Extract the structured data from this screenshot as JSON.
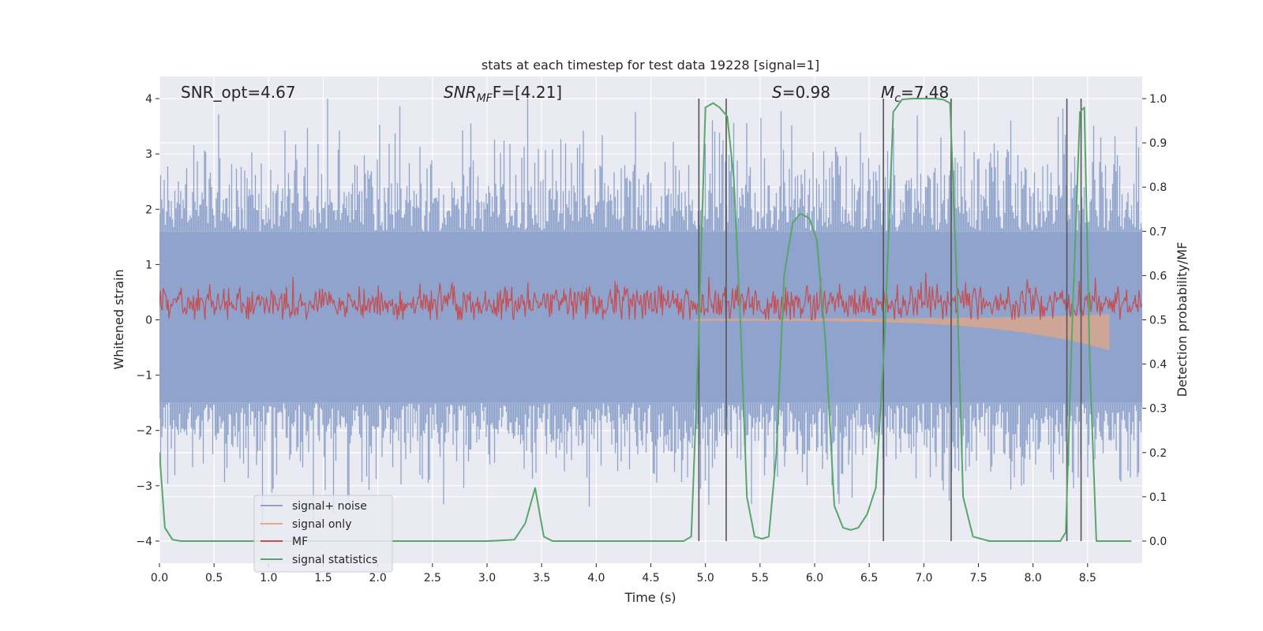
{
  "chart_data": {
    "type": "line",
    "title": "stats at each timestep for test data 19228 [signal=1]",
    "xlabel": "Time (s)",
    "ylabel_left": "Whitened strain",
    "ylabel_right": "Detection probability/MF",
    "xlim": [
      0.0,
      9.0
    ],
    "ylim_left": [
      -4.4,
      4.4
    ],
    "ylim_right": [
      -0.05,
      1.05
    ],
    "x_ticks": [
      "0.0",
      "0.5",
      "1.0",
      "1.5",
      "2.0",
      "2.5",
      "3.0",
      "3.5",
      "4.0",
      "4.5",
      "5.0",
      "5.5",
      "6.0",
      "6.5",
      "7.0",
      "7.5",
      "8.0",
      "8.5"
    ],
    "x_tick_values": [
      0.0,
      0.5,
      1.0,
      1.5,
      2.0,
      2.5,
      3.0,
      3.5,
      4.0,
      4.5,
      5.0,
      5.5,
      6.0,
      6.5,
      7.0,
      7.5,
      8.0,
      8.5
    ],
    "y_left_ticks": [
      "4",
      "3",
      "2",
      "1",
      "0",
      "−1",
      "−2",
      "−3",
      "−4"
    ],
    "y_left_tick_values": [
      4,
      3,
      2,
      1,
      0,
      -1,
      -2,
      -3,
      -4
    ],
    "y_right_ticks": [
      "1.0",
      "0.9",
      "0.8",
      "0.7",
      "0.6",
      "0.5",
      "0.4",
      "0.3",
      "0.2",
      "0.1",
      "0.0"
    ],
    "y_right_tick_values": [
      1.0,
      0.9,
      0.8,
      0.7,
      0.6,
      0.5,
      0.4,
      0.3,
      0.2,
      0.1,
      0.0
    ],
    "annotations": {
      "snr_opt": "SNR_opt=4.67",
      "snr_mf_main": "SNR",
      "snr_mf_sub": "MF",
      "snr_mf_rest": "F=[4.21]",
      "s_main": "S",
      "s_rest": "=0.98",
      "mc_main": "M",
      "mc_sub": "c",
      "mc_rest": "=7.48"
    },
    "legend": {
      "placement": "lower-left",
      "entries": [
        "signal+ noise",
        "signal only",
        "MF",
        "signal statistics"
      ]
    },
    "colors": {
      "noise": "#8fa3cc",
      "signal_only": "#dd8452",
      "mf": "#c44e52",
      "stat": "#55a868",
      "vline": "#555555",
      "bg": "#eaeaf2",
      "grid": "#ffffff"
    },
    "series": [
      {
        "name": "signal statistics",
        "axis": "right",
        "x": [
          0.0,
          0.05,
          0.12,
          0.2,
          0.5,
          1.0,
          1.5,
          2.0,
          2.5,
          3.0,
          3.25,
          3.35,
          3.44,
          3.52,
          3.6,
          4.0,
          4.5,
          4.8,
          4.87,
          4.93,
          5.0,
          5.07,
          5.13,
          5.2,
          5.26,
          5.32,
          5.38,
          5.45,
          5.52,
          5.58,
          5.65,
          5.72,
          5.8,
          5.87,
          5.95,
          6.02,
          6.1,
          6.18,
          6.26,
          6.33,
          6.4,
          6.48,
          6.56,
          6.64,
          6.72,
          6.8,
          6.9,
          7.0,
          7.1,
          7.18,
          7.24,
          7.3,
          7.36,
          7.45,
          7.6,
          8.0,
          8.25,
          8.3,
          8.36,
          8.43,
          8.47,
          8.52,
          8.58,
          8.7,
          8.9
        ],
        "values": [
          0.2,
          0.03,
          0.003,
          0.0,
          0.0,
          0.0,
          0.0,
          0.0,
          0.0,
          0.0,
          0.003,
          0.04,
          0.12,
          0.01,
          0.0,
          0.0,
          0.0,
          0.0,
          0.01,
          0.4,
          0.98,
          0.99,
          0.98,
          0.96,
          0.82,
          0.5,
          0.1,
          0.01,
          0.005,
          0.01,
          0.2,
          0.6,
          0.72,
          0.74,
          0.73,
          0.68,
          0.45,
          0.08,
          0.03,
          0.025,
          0.03,
          0.06,
          0.12,
          0.45,
          0.97,
          0.998,
          1.0,
          1.0,
          1.0,
          0.998,
          0.99,
          0.6,
          0.1,
          0.01,
          0.0,
          0.0,
          0.0,
          0.02,
          0.5,
          0.97,
          0.98,
          0.4,
          0.0,
          0.0,
          0.0
        ]
      },
      {
        "name": "signal only",
        "axis": "left",
        "start": 4.9,
        "end": 8.7,
        "final_amplitude": -0.55
      },
      {
        "name": "MF",
        "axis": "left",
        "baseline": 0.3,
        "range": [
          0.0,
          0.85
        ]
      },
      {
        "name": "signal+ noise",
        "axis": "left",
        "band": [
          -1.5,
          1.6
        ],
        "max_peak": 4.0,
        "min_peak": -3.75
      }
    ],
    "vertical_lines": [
      4.94,
      5.19,
      6.63,
      7.25,
      8.31,
      8.44
    ]
  }
}
